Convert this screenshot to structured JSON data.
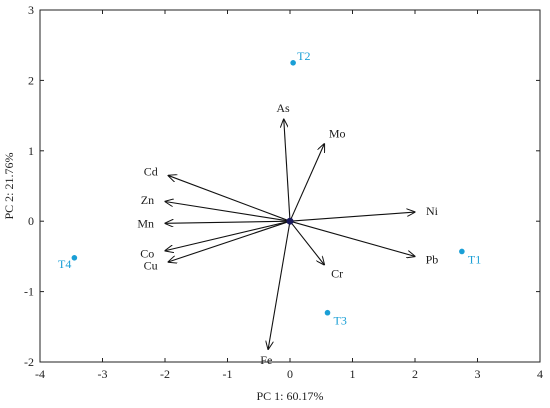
{
  "chart_data": {
    "type": "biplot",
    "xlabel": "PC 1: 60.17%",
    "ylabel": "PC 2: 21.76%",
    "xlim": [
      -4,
      4
    ],
    "ylim": [
      -2,
      3
    ],
    "xticks": [
      -4,
      -3,
      -2,
      -1,
      0,
      1,
      2,
      3,
      4
    ],
    "yticks": [
      -2,
      -1,
      0,
      1,
      2,
      3
    ],
    "grid": false,
    "loadings": [
      {
        "name": "As",
        "x": -0.1,
        "y": 1.45
      },
      {
        "name": "Mo",
        "x": 0.55,
        "y": 1.1
      },
      {
        "name": "Cd",
        "x": -1.95,
        "y": 0.65
      },
      {
        "name": "Zn",
        "x": -2.0,
        "y": 0.28
      },
      {
        "name": "Mn",
        "x": -2.0,
        "y": -0.03
      },
      {
        "name": "Co",
        "x": -2.0,
        "y": -0.42
      },
      {
        "name": "Cu",
        "x": -1.95,
        "y": -0.58
      },
      {
        "name": "Ni",
        "x": 2.0,
        "y": 0.13
      },
      {
        "name": "Pb",
        "x": 2.0,
        "y": -0.5
      },
      {
        "name": "Cr",
        "x": 0.55,
        "y": -0.62
      },
      {
        "name": "Fe",
        "x": -0.35,
        "y": -1.82
      }
    ],
    "scores": [
      {
        "name": "T1",
        "x": 2.75,
        "y": -0.43
      },
      {
        "name": "T2",
        "x": 0.05,
        "y": 2.25
      },
      {
        "name": "T3",
        "x": 0.6,
        "y": -1.3
      },
      {
        "name": "T4",
        "x": -3.45,
        "y": -0.52
      }
    ],
    "colors": {
      "vectors": "#111111",
      "points": "#1a9fd6",
      "point_labels": "#1a9fd6",
      "origin": "#1a1a5a"
    }
  }
}
